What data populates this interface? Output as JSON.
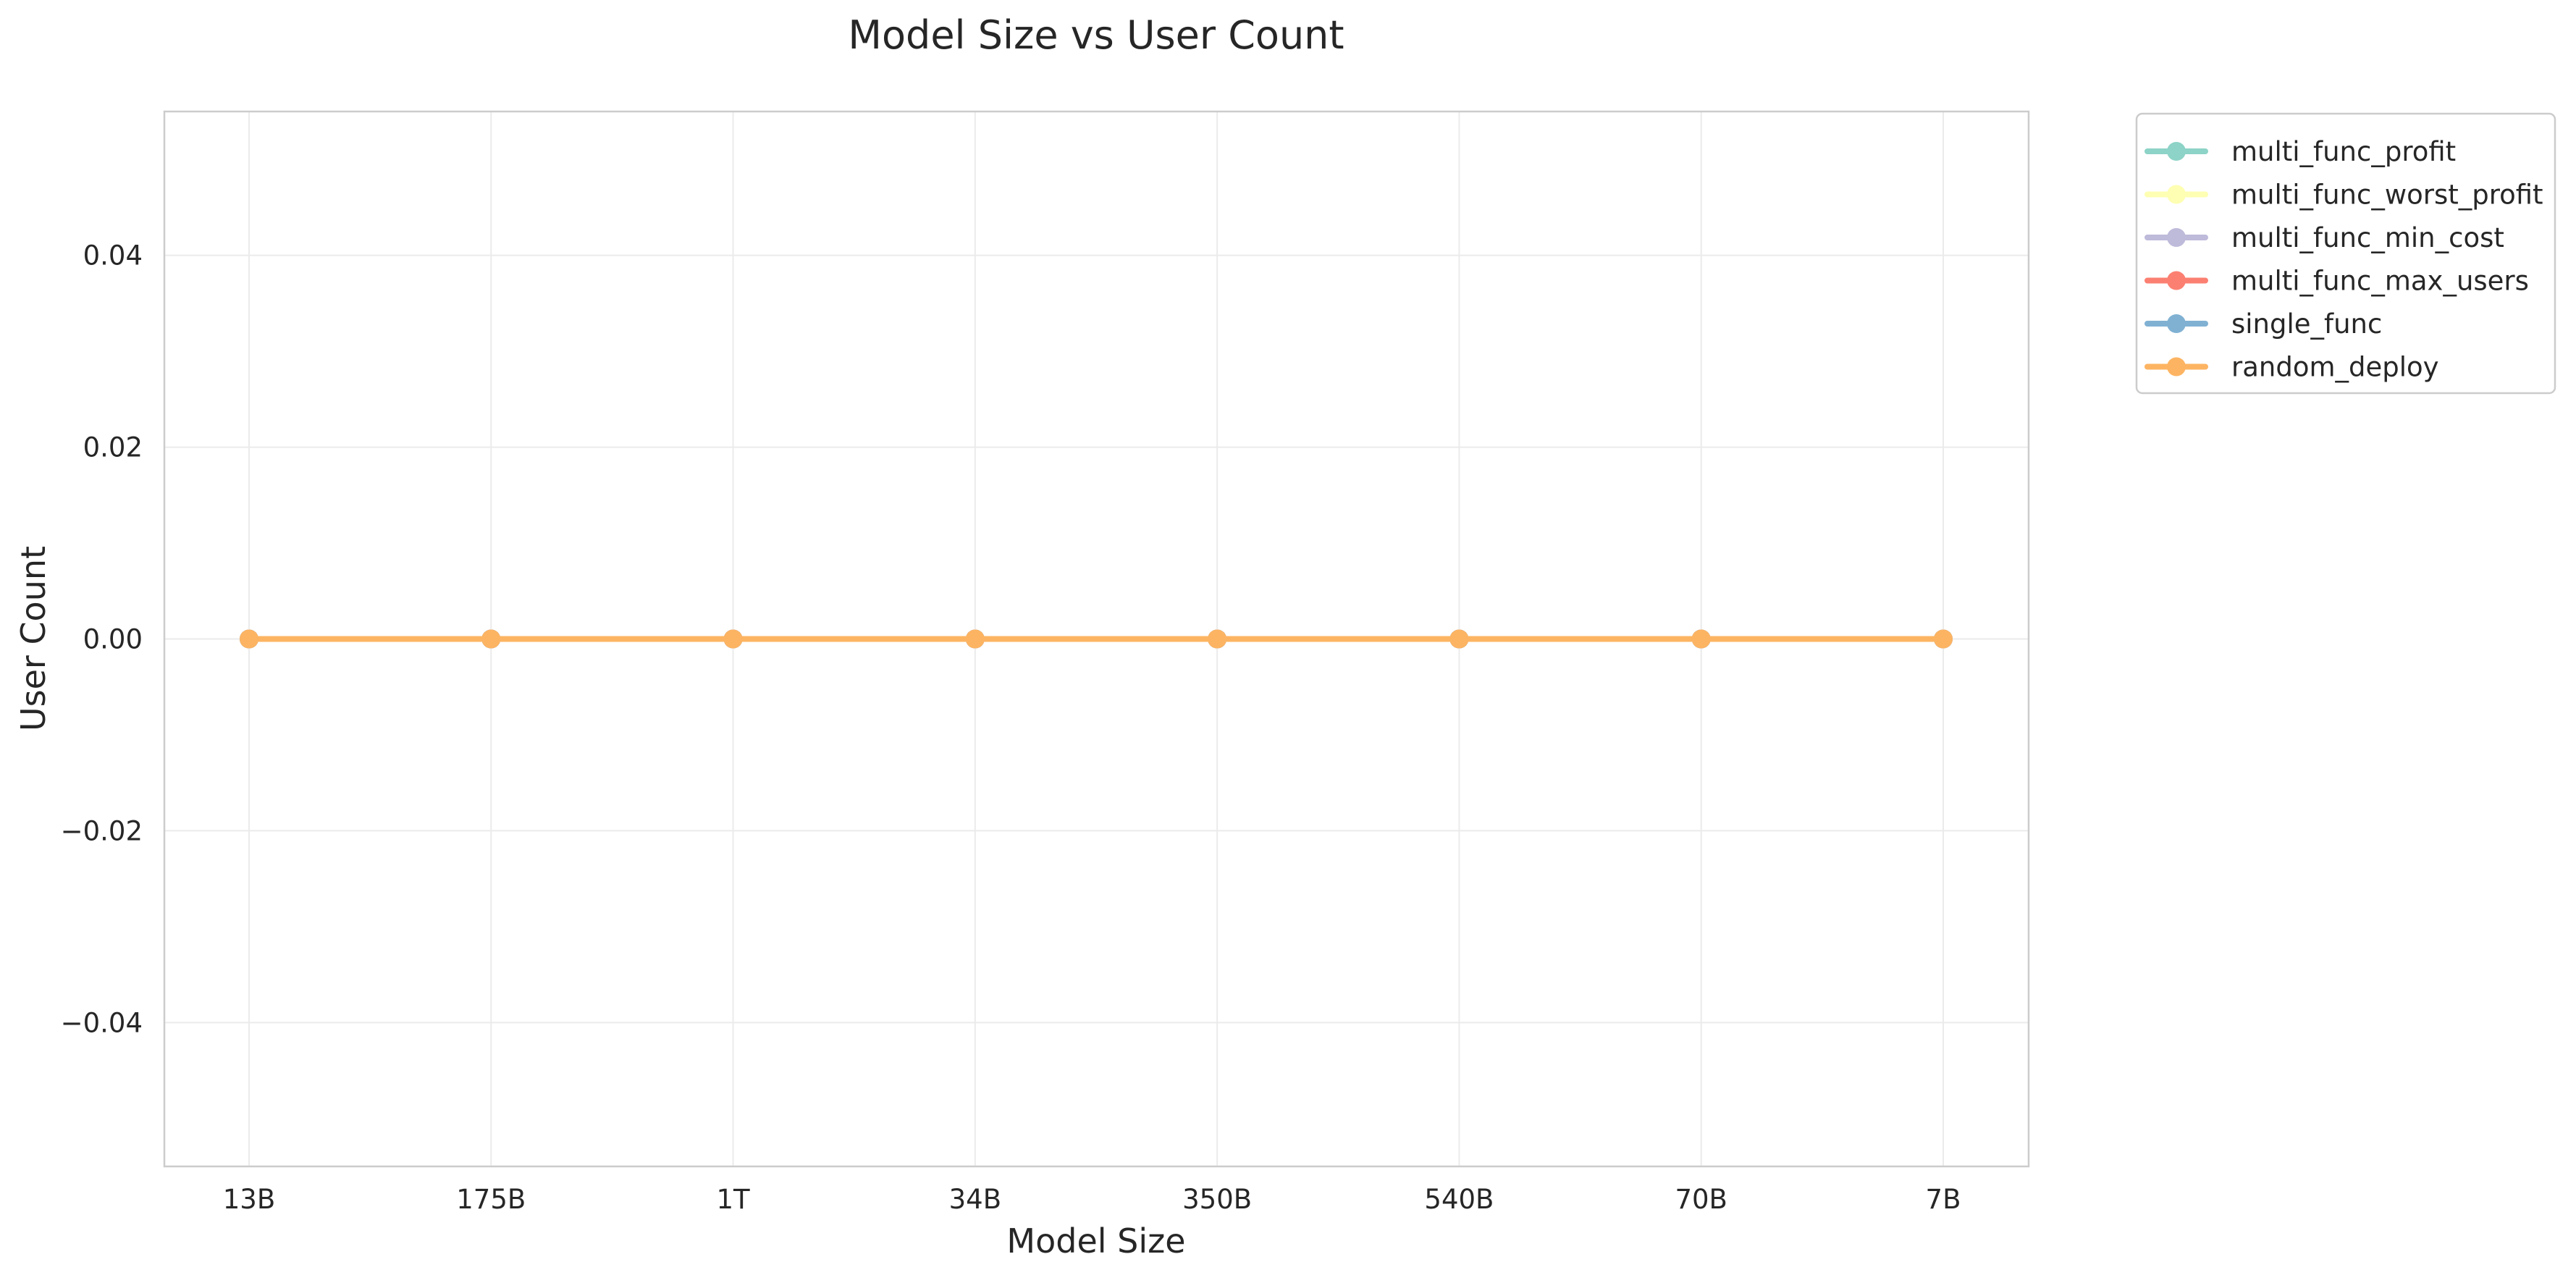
{
  "chart_data": {
    "type": "line",
    "title": "Model Size vs User Count",
    "xlabel": "Model Size",
    "ylabel": "User Count",
    "categories": [
      "13B",
      "175B",
      "1T",
      "34B",
      "350B",
      "540B",
      "70B",
      "7B"
    ],
    "ylim": [
      -0.055,
      0.055
    ],
    "yticks": [
      -0.04,
      -0.02,
      0.0,
      0.02,
      0.04
    ],
    "ytick_labels": [
      "−0.04",
      "−0.02",
      "0.00",
      "0.02",
      "0.04"
    ],
    "grid": true,
    "legend_position": "outside-top-right",
    "series": [
      {
        "name": "multi_func_profit",
        "color": "#8dd3c7",
        "values": [
          0,
          0,
          0,
          0,
          0,
          0,
          0,
          0
        ]
      },
      {
        "name": "multi_func_worst_profit",
        "color": "#ffffb3",
        "values": [
          0,
          0,
          0,
          0,
          0,
          0,
          0,
          0
        ]
      },
      {
        "name": "multi_func_min_cost",
        "color": "#bebada",
        "values": [
          0,
          0,
          0,
          0,
          0,
          0,
          0,
          0
        ]
      },
      {
        "name": "multi_func_max_users",
        "color": "#fb8072",
        "values": [
          0,
          0,
          0,
          0,
          0,
          0,
          0,
          0
        ]
      },
      {
        "name": "single_func",
        "color": "#80b1d3",
        "values": [
          0,
          0,
          0,
          0,
          0,
          0,
          0,
          0
        ]
      },
      {
        "name": "random_deploy",
        "color": "#fdb462",
        "values": [
          0,
          0,
          0,
          0,
          0,
          0,
          0,
          0
        ]
      }
    ]
  }
}
